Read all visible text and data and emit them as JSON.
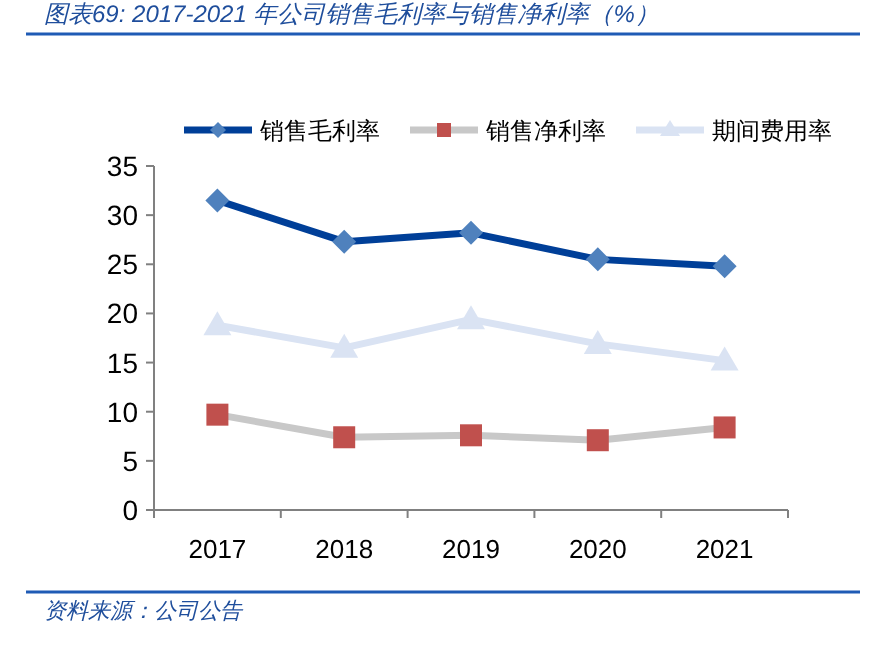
{
  "chart_data": {
    "type": "line",
    "title": "图表69:  2017-2021 年公司销售毛利率与销售净利率（%）",
    "categories": [
      "2017",
      "2018",
      "2019",
      "2020",
      "2021"
    ],
    "series": [
      {
        "name": "销售毛利率",
        "color": "#003f98",
        "colors": [
          "#4f81bd",
          "#4f81bd",
          "#4f81bd",
          "#4f81bd",
          "#4f81bd"
        ],
        "marker": "diamond",
        "values": [
          31.5,
          27.3,
          28.2,
          25.5,
          24.8
        ]
      },
      {
        "name": "销售净利率",
        "color": "#c8c8c8",
        "colors": [
          "#c0504d",
          "#c0504d",
          "#c0504d",
          "#c0504d",
          "#c0504d"
        ],
        "marker": "square",
        "values": [
          9.7,
          7.4,
          7.6,
          7.1,
          8.4
        ]
      },
      {
        "name": "期间费用率",
        "color": "#dae3f3",
        "marker": "triangle",
        "values": [
          18.8,
          16.5,
          19.4,
          16.9,
          15.2
        ]
      }
    ],
    "ylim": [
      0,
      35
    ],
    "yticks": [
      0,
      5,
      10,
      15,
      20,
      25,
      30,
      35
    ],
    "legend": "top",
    "grid": false,
    "line_style": "solid",
    "annotations": [
      "资料来源：公司公告"
    ]
  }
}
